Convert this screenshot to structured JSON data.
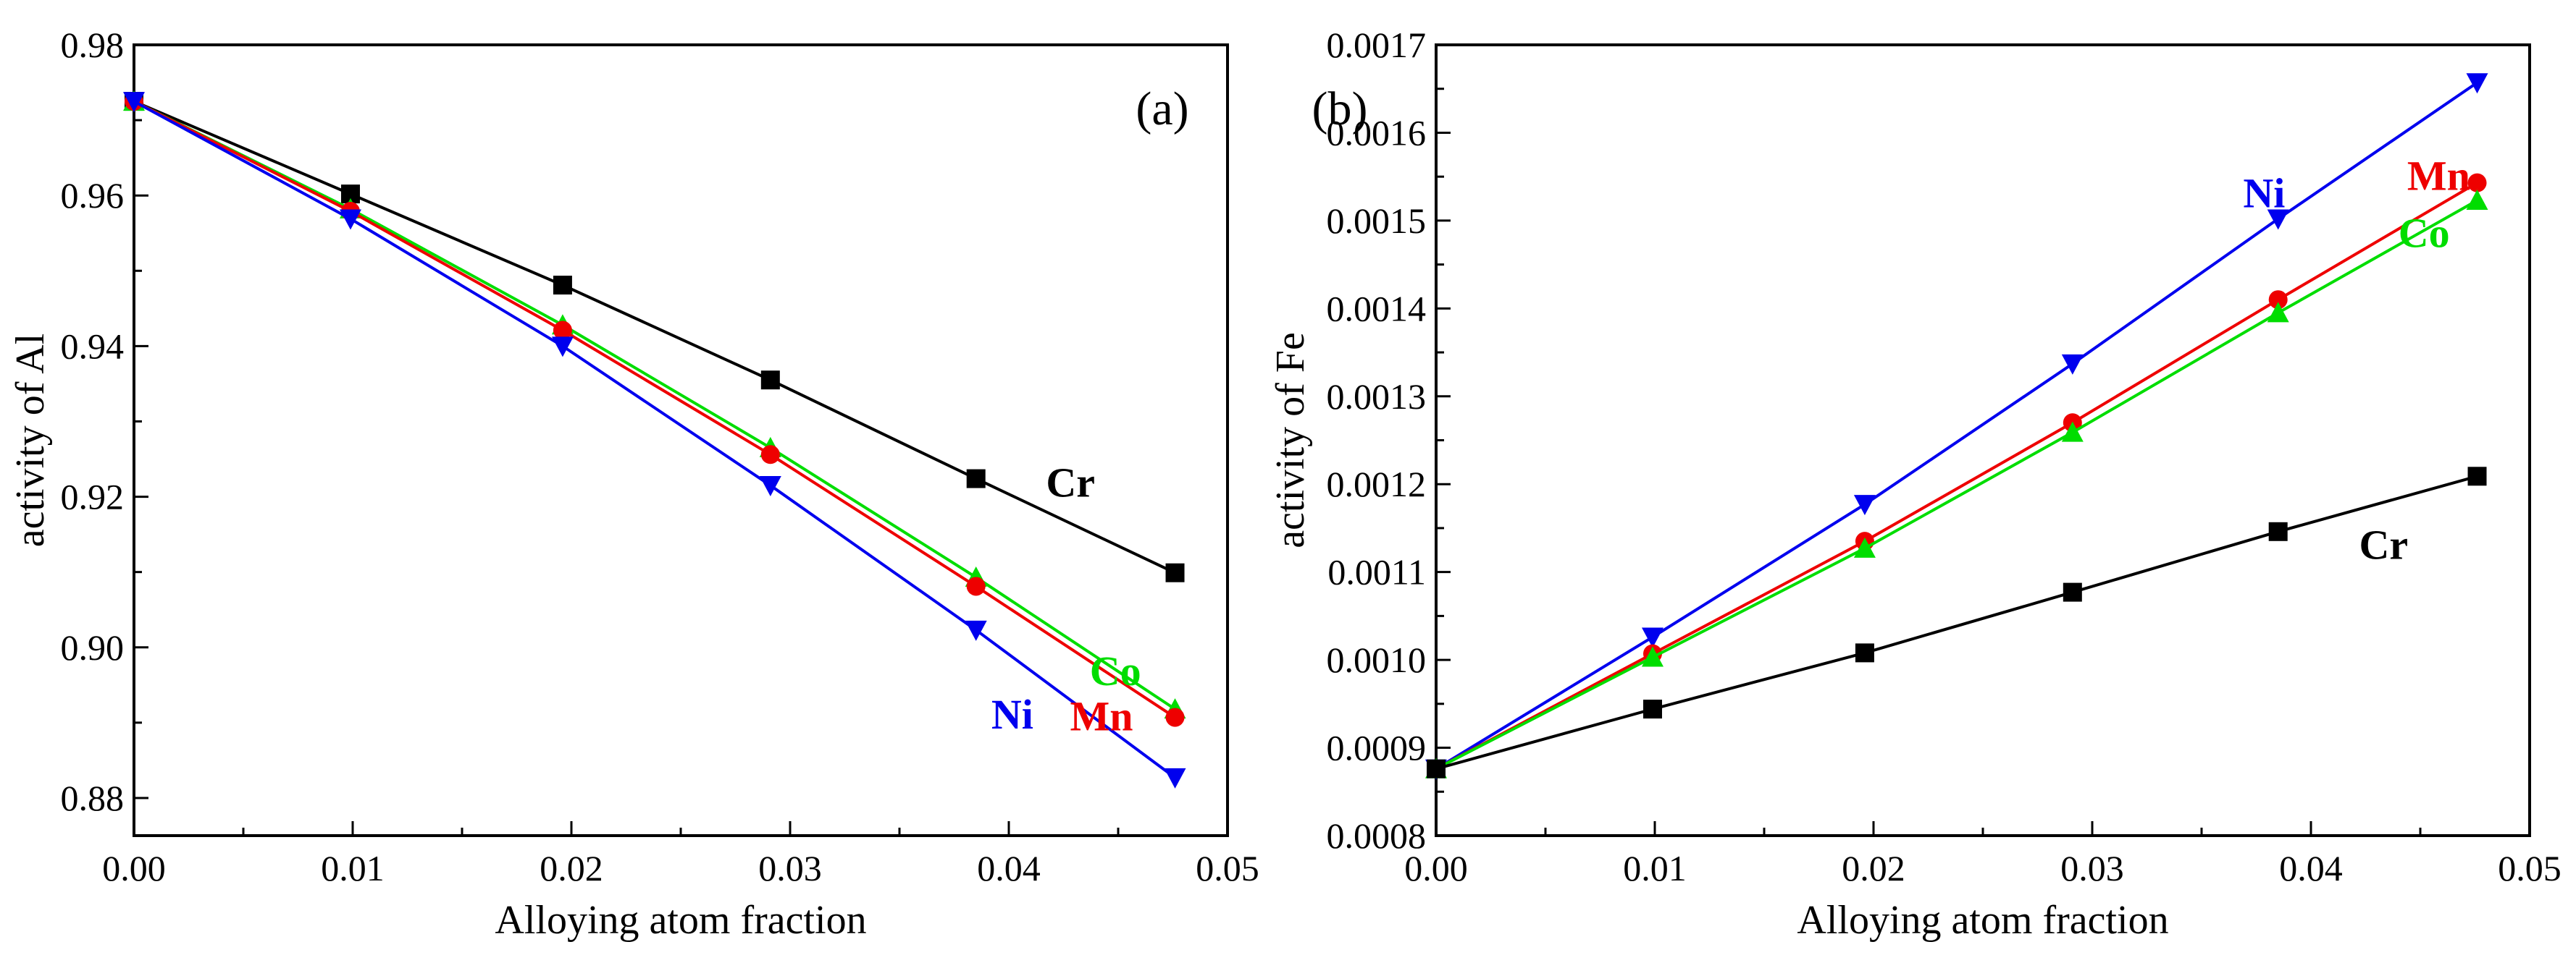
{
  "chart_data": [
    {
      "type": "line",
      "panel_label": "(a)",
      "title": "",
      "xlabel": "Alloying atom fraction",
      "ylabel": "activity of Al",
      "xlim": [
        0.0,
        0.05
      ],
      "ylim": [
        0.875,
        0.98
      ],
      "xticks": [
        0.0,
        0.01,
        0.02,
        0.03,
        0.04,
        0.05
      ],
      "xtick_labels": [
        "0.00",
        "0.01",
        "0.02",
        "0.03",
        "0.04",
        "0.05"
      ],
      "yticks": [
        0.88,
        0.9,
        0.92,
        0.94,
        0.96,
        0.98
      ],
      "ytick_labels": [
        "0.88",
        "0.90",
        "0.92",
        "0.94",
        "0.96",
        "0.98"
      ],
      "x": [
        0.0,
        0.0099,
        0.0196,
        0.0291,
        0.0385,
        0.0476
      ],
      "series": [
        {
          "name": "Cr",
          "color": "#000000",
          "marker": "square",
          "values": [
            0.9725,
            0.9602,
            0.9481,
            0.9355,
            0.9224,
            0.9099
          ]
        },
        {
          "name": "Co",
          "color": "#00dd00",
          "marker": "triangle-up",
          "values": [
            0.9725,
            0.9582,
            0.9428,
            0.9265,
            0.9093,
            0.8918
          ]
        },
        {
          "name": "Mn",
          "color": "#ee0000",
          "marker": "circle",
          "values": [
            0.9725,
            0.9579,
            0.9421,
            0.9256,
            0.9081,
            0.8907
          ]
        },
        {
          "name": "Ni",
          "color": "#0000ee",
          "marker": "triangle-down",
          "values": [
            0.9725,
            0.9569,
            0.94,
            0.9215,
            0.9023,
            0.8827
          ]
        }
      ],
      "annotations": [
        {
          "text": "Cr",
          "color": "#000000",
          "x": 0.0417,
          "y": 0.92
        },
        {
          "text": "Co",
          "color": "#00dd00",
          "x": 0.0437,
          "y": 0.895
        },
        {
          "text": "Mn",
          "color": "#ee0000",
          "x": 0.0428,
          "y": 0.889
        },
        {
          "text": "Ni",
          "color": "#0000ee",
          "x": 0.0392,
          "y": 0.8892
        }
      ],
      "grid": false
    },
    {
      "type": "line",
      "panel_label": "(b)",
      "title": "",
      "xlabel": "Alloying atom fraction",
      "ylabel": "activity of Fe",
      "xlim": [
        0.0,
        0.05
      ],
      "ylim": [
        0.0008,
        0.0017
      ],
      "xticks": [
        0.0,
        0.01,
        0.02,
        0.03,
        0.04,
        0.05
      ],
      "xtick_labels": [
        "0.00",
        "0.01",
        "0.02",
        "0.03",
        "0.04",
        "0.05"
      ],
      "yticks": [
        0.0008,
        0.0009,
        0.001,
        0.0011,
        0.0012,
        0.0013,
        0.0014,
        0.0015,
        0.0016,
        0.0017
      ],
      "ytick_labels": [
        "0.0008",
        "0.0009",
        "0.0010",
        "0.0011",
        "0.0012",
        "0.0013",
        "0.0014",
        "0.0015",
        "0.0016",
        "0.0017"
      ],
      "x": [
        0.0,
        0.0099,
        0.0196,
        0.0291,
        0.0385,
        0.0476
      ],
      "series": [
        {
          "name": "Ni",
          "color": "#0000ee",
          "marker": "triangle-down",
          "values": [
            0.000876,
            0.001026,
            0.001177,
            0.001337,
            0.001502,
            0.001657
          ]
        },
        {
          "name": "Mn",
          "color": "#ee0000",
          "marker": "circle",
          "values": [
            0.000876,
            0.001007,
            0.001135,
            0.00127,
            0.00141,
            0.001543
          ]
        },
        {
          "name": "Co",
          "color": "#00dd00",
          "marker": "triangle-up",
          "values": [
            0.000876,
            0.001003,
            0.001127,
            0.001259,
            0.001395,
            0.001523
          ]
        },
        {
          "name": "Cr",
          "color": "#000000",
          "marker": "square",
          "values": [
            0.000876,
            0.000944,
            0.001008,
            0.001077,
            0.001146,
            0.001209
          ]
        }
      ],
      "annotations": [
        {
          "text": "Ni",
          "color": "#0000ee",
          "x": 0.0369,
          "y": 0.001515
        },
        {
          "text": "Mn",
          "color": "#ee0000",
          "x": 0.0444,
          "y": 0.001535
        },
        {
          "text": "Co",
          "color": "#00dd00",
          "x": 0.044,
          "y": 0.00147
        },
        {
          "text": "Cr",
          "color": "#000000",
          "x": 0.0422,
          "y": 0.001115
        }
      ],
      "grid": false
    }
  ]
}
